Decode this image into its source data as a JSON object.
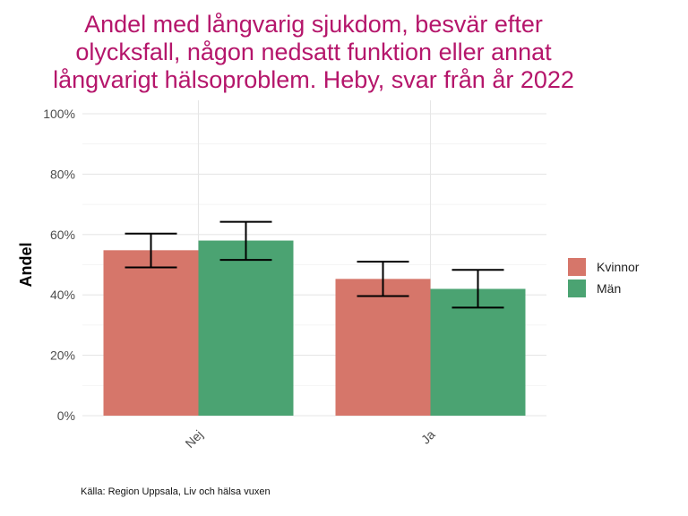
{
  "chart_data": {
    "type": "bar",
    "title_lines": [
      "Andel med långvarig sjukdom, besvär efter",
      "olycksfall, någon nedsatt funktion eller annat",
      "långvarigt hälsoproblem. Heby, svar från år 2022"
    ],
    "xlabel": "",
    "ylabel": "Andel",
    "categories": [
      "Nej",
      "Ja"
    ],
    "ylim": [
      0,
      100
    ],
    "yticks": [
      "0%",
      "20%",
      "40%",
      "60%",
      "80%",
      "100%"
    ],
    "ytick_values": [
      0,
      20,
      40,
      60,
      80,
      100
    ],
    "grid": true,
    "legend_position": "right",
    "series": [
      {
        "name": "Kvinnor",
        "color": "#d6766a",
        "values": [
          54.8,
          45.3
        ],
        "error_low": [
          49.1,
          39.6
        ],
        "error_high": [
          60.3,
          51.0
        ]
      },
      {
        "name": "Män",
        "color": "#4ba372",
        "values": [
          58.0,
          42.0
        ],
        "error_low": [
          51.6,
          35.8
        ],
        "error_high": [
          64.2,
          48.3
        ]
      }
    ],
    "caption": "Källa: Region Uppsala, Liv och hälsa vuxen"
  }
}
